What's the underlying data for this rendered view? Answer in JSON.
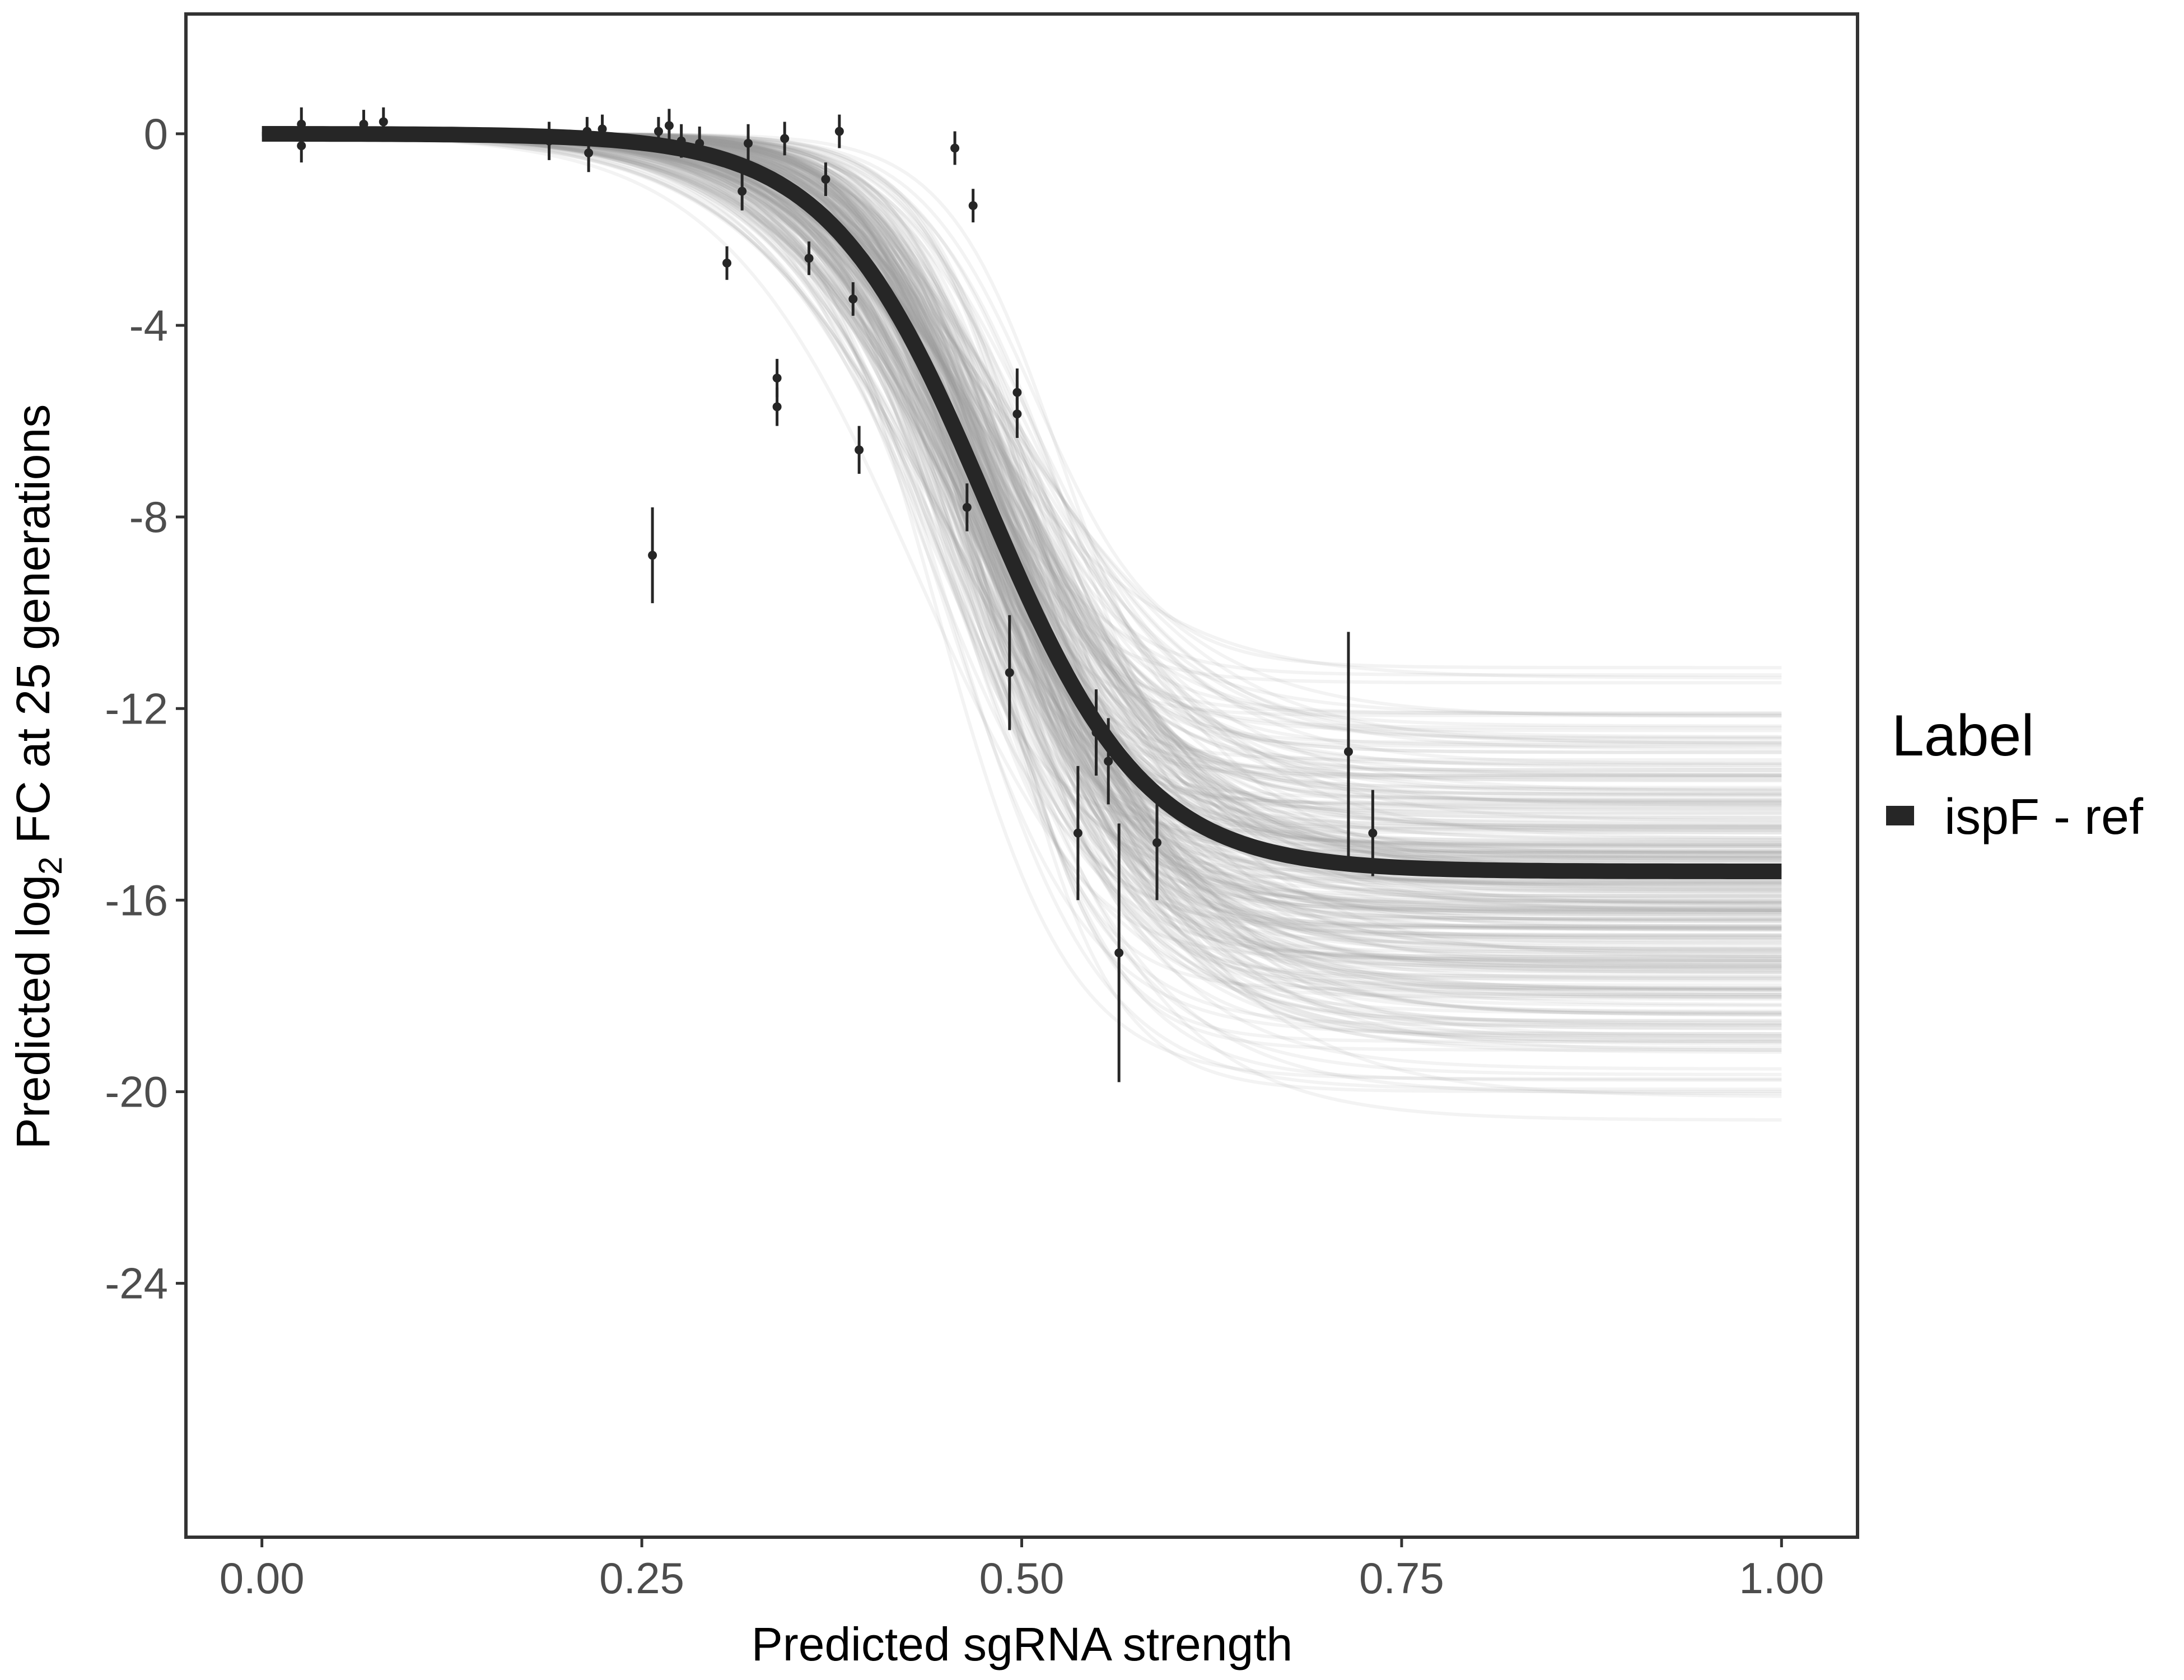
{
  "chart_data": {
    "type": "line",
    "xlabel": "Predicted sgRNA strength",
    "ylabel_parts": [
      "Predicted  log",
      "2",
      " FC at 25 generations"
    ],
    "xlim": [
      -0.05,
      1.05
    ],
    "ylim": [
      -29.3,
      2.5
    ],
    "x_ticks": [
      0,
      0.25,
      0.5,
      0.75,
      1.0
    ],
    "x_tick_labels": [
      "0.00",
      "0.25",
      "0.50",
      "0.75",
      "1.00"
    ],
    "y_ticks": [
      0,
      -4,
      -8,
      -12,
      -16,
      -20,
      -24
    ],
    "y_tick_labels": [
      "0",
      "-4",
      "-8",
      "-12",
      "-16",
      "-20",
      "-24"
    ],
    "grid": false,
    "legend": {
      "title": "Label",
      "placement": "right",
      "entries": [
        {
          "label": "ispF - ref",
          "color": "#262626"
        }
      ]
    },
    "fit": {
      "name": "ispF - ref",
      "model": "logistic",
      "asymptote": -15.4,
      "midpoint": 0.477,
      "scale": 0.052,
      "color": "#262626"
    },
    "posterior_draws": {
      "count": 300,
      "color": "#a0a0a0",
      "asymptote_range": [
        -21.6,
        -10.4
      ],
      "midpoint_range": [
        0.43,
        0.53
      ],
      "scale_range": [
        0.035,
        0.07
      ]
    },
    "points": [
      {
        "x": 0.026,
        "y": 0.2,
        "err": 0.35
      },
      {
        "x": 0.026,
        "y": -0.25,
        "err": 0.35
      },
      {
        "x": 0.067,
        "y": 0.2,
        "err": 0.3
      },
      {
        "x": 0.08,
        "y": 0.25,
        "err": 0.3
      },
      {
        "x": 0.189,
        "y": -0.15,
        "err": 0.4
      },
      {
        "x": 0.214,
        "y": 0.05,
        "err": 0.3
      },
      {
        "x": 0.215,
        "y": -0.4,
        "err": 0.4
      },
      {
        "x": 0.224,
        "y": 0.1,
        "err": 0.3
      },
      {
        "x": 0.261,
        "y": 0.05,
        "err": 0.3
      },
      {
        "x": 0.268,
        "y": 0.17,
        "err": 0.35
      },
      {
        "x": 0.276,
        "y": -0.15,
        "err": 0.35
      },
      {
        "x": 0.288,
        "y": -0.2,
        "err": 0.35
      },
      {
        "x": 0.306,
        "y": -2.7,
        "err": 0.35
      },
      {
        "x": 0.316,
        "y": -1.2,
        "err": 0.4
      },
      {
        "x": 0.32,
        "y": -0.2,
        "err": 0.4
      },
      {
        "x": 0.339,
        "y": -5.1,
        "err": 0.4
      },
      {
        "x": 0.339,
        "y": -5.7,
        "err": 0.4
      },
      {
        "x": 0.344,
        "y": -0.1,
        "err": 0.35
      },
      {
        "x": 0.36,
        "y": -2.6,
        "err": 0.35
      },
      {
        "x": 0.371,
        "y": -0.95,
        "err": 0.35
      },
      {
        "x": 0.38,
        "y": 0.05,
        "err": 0.35
      },
      {
        "x": 0.389,
        "y": -3.45,
        "err": 0.35
      },
      {
        "x": 0.393,
        "y": -6.6,
        "err": 0.5
      },
      {
        "x": 0.257,
        "y": -8.8,
        "err": 1.0
      },
      {
        "x": 0.456,
        "y": -0.3,
        "err": 0.35
      },
      {
        "x": 0.468,
        "y": -1.5,
        "err": 0.35
      },
      {
        "x": 0.464,
        "y": -7.8,
        "err": 0.5
      },
      {
        "x": 0.497,
        "y": -5.4,
        "err": 0.5
      },
      {
        "x": 0.497,
        "y": -5.85,
        "err": 0.5
      },
      {
        "x": 0.492,
        "y": -11.25,
        "err": 1.2
      },
      {
        "x": 0.537,
        "y": -14.6,
        "err": 1.4
      },
      {
        "x": 0.549,
        "y": -12.5,
        "err": 0.9
      },
      {
        "x": 0.557,
        "y": -13.1,
        "err": 0.9
      },
      {
        "x": 0.564,
        "y": -17.1,
        "err": 2.7
      },
      {
        "x": 0.589,
        "y": -14.8,
        "err": 1.2
      },
      {
        "x": 0.715,
        "y": -12.9,
        "err": 2.5
      },
      {
        "x": 0.731,
        "y": -14.6,
        "err": 0.9
      }
    ]
  }
}
